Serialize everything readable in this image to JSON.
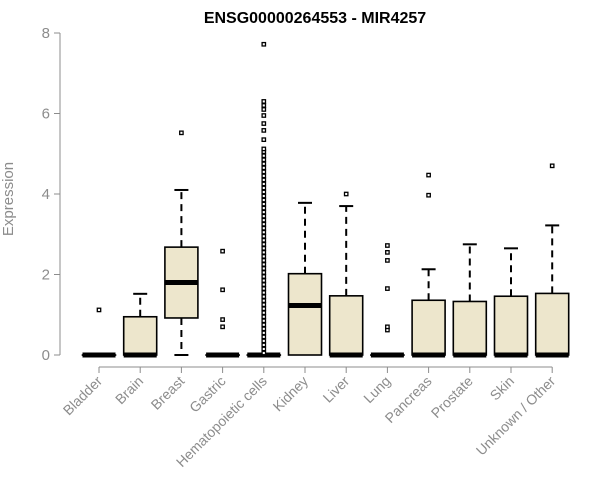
{
  "chart_data": {
    "type": "boxplot",
    "title": "ENSG00000264553 - MIR4257",
    "ylabel": "Expression",
    "xlabel": "",
    "ylim": [
      0,
      8
    ],
    "yticks": [
      0,
      2,
      4,
      6,
      8
    ],
    "grid": false,
    "box_fill": "#ede6cc",
    "box_stroke": "#000000",
    "axis_color": "#8c8c8c",
    "categories": [
      "Bladder",
      "Brain",
      "Breast",
      "Gastric",
      "Hematopoietic cells",
      "Kidney",
      "Liver",
      "Lung",
      "Pancreas",
      "Prostate",
      "Skin",
      "Unknown / Other"
    ],
    "boxes": [
      {
        "category": "Bladder",
        "q1": 0,
        "median": 0,
        "q3": 0,
        "whisker_low": 0,
        "whisker_high": 0,
        "outliers": [
          1.12
        ]
      },
      {
        "category": "Brain",
        "q1": 0,
        "median": 0,
        "q3": 0.95,
        "whisker_low": 0,
        "whisker_high": 1.52,
        "outliers": []
      },
      {
        "category": "Breast",
        "q1": 0.92,
        "median": 1.8,
        "q3": 2.68,
        "whisker_low": 0,
        "whisker_high": 4.1,
        "outliers": [
          5.52
        ]
      },
      {
        "category": "Gastric",
        "q1": 0,
        "median": 0,
        "q3": 0,
        "whisker_low": 0,
        "whisker_high": 0,
        "outliers": [
          0.7,
          0.88,
          1.62,
          2.58
        ]
      },
      {
        "category": "Hematopoietic cells",
        "q1": 0,
        "median": 0,
        "q3": 0,
        "whisker_low": 0,
        "whisker_high": 0,
        "outliers": [
          0.05,
          0.15,
          0.25,
          0.35,
          0.45,
          0.55,
          0.65,
          0.75,
          0.85,
          0.95,
          1.05,
          1.15,
          1.25,
          1.35,
          1.45,
          1.55,
          1.65,
          1.75,
          1.85,
          1.95,
          2.05,
          2.15,
          2.25,
          2.35,
          2.45,
          2.55,
          2.65,
          2.75,
          2.85,
          2.95,
          3.05,
          3.15,
          3.25,
          3.35,
          3.45,
          3.55,
          3.65,
          3.75,
          3.85,
          3.95,
          4.05,
          4.15,
          4.25,
          4.35,
          4.45,
          4.55,
          4.65,
          4.75,
          4.85,
          4.95,
          5.05,
          5.12,
          5.35,
          5.58,
          5.75,
          5.95,
          6.1,
          6.2,
          6.3,
          7.72
        ]
      },
      {
        "category": "Kidney",
        "q1": 0,
        "median": 1.23,
        "q3": 2.02,
        "whisker_low": 0,
        "whisker_high": 3.78,
        "outliers": []
      },
      {
        "category": "Liver",
        "q1": 0,
        "median": 0,
        "q3": 1.47,
        "whisker_low": 0,
        "whisker_high": 3.7,
        "outliers": [
          4.0
        ]
      },
      {
        "category": "Lung",
        "q1": 0,
        "median": 0,
        "q3": 0,
        "whisker_low": 0,
        "whisker_high": 0,
        "outliers": [
          0.62,
          0.7,
          1.65,
          2.35,
          2.55,
          2.72
        ]
      },
      {
        "category": "Pancreas",
        "q1": 0,
        "median": 0,
        "q3": 1.36,
        "whisker_low": 0,
        "whisker_high": 2.13,
        "outliers": [
          3.97,
          4.47
        ]
      },
      {
        "category": "Prostate",
        "q1": 0,
        "median": 0,
        "q3": 1.33,
        "whisker_low": 0,
        "whisker_high": 2.75,
        "outliers": []
      },
      {
        "category": "Skin",
        "q1": 0,
        "median": 0,
        "q3": 1.46,
        "whisker_low": 0,
        "whisker_high": 2.65,
        "outliers": []
      },
      {
        "category": "Unknown / Other",
        "q1": 0,
        "median": 0,
        "q3": 1.53,
        "whisker_low": 0,
        "whisker_high": 3.22,
        "outliers": [
          4.7
        ]
      }
    ]
  }
}
